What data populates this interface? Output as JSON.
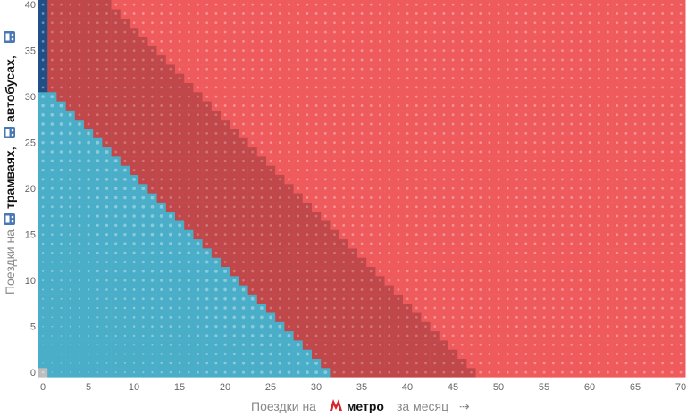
{
  "chart_data": {
    "type": "heatmap",
    "x": {
      "label_pre": "Поездки на",
      "label_bold": "метро",
      "label_post": "за месяц",
      "arrow": "⇢",
      "range": [
        0,
        70
      ],
      "ticks": [
        "0",
        "5",
        "10",
        "15",
        "20",
        "25",
        "30",
        "35",
        "40",
        "45",
        "50",
        "55",
        "60",
        "65",
        "70"
      ]
    },
    "y": {
      "label_pre": "Поездки на",
      "label_bold": "трамваях,",
      "label_bold2": "автобусах,",
      "range": [
        0,
        40
      ],
      "ticks": [
        "0",
        "5",
        "10",
        "15",
        "20",
        "25",
        "30",
        "35",
        "40"
      ]
    },
    "regions": [
      {
        "color": "#4aaec9",
        "rule": "x + y < 32"
      },
      {
        "color": "#1f4f86",
        "rule": "x = 0 and y >= 31"
      },
      {
        "color": "#c0484a",
        "rule": "32 <= x + y < 48"
      },
      {
        "color": "#ef5a5c",
        "rule": "x + y >= 48"
      },
      {
        "color": "#bdbdbd",
        "rule": "x = 0 and y = 0"
      }
    ],
    "icons": [
      "bus-icon",
      "metro-icon"
    ],
    "grid": false,
    "legend": "none"
  }
}
